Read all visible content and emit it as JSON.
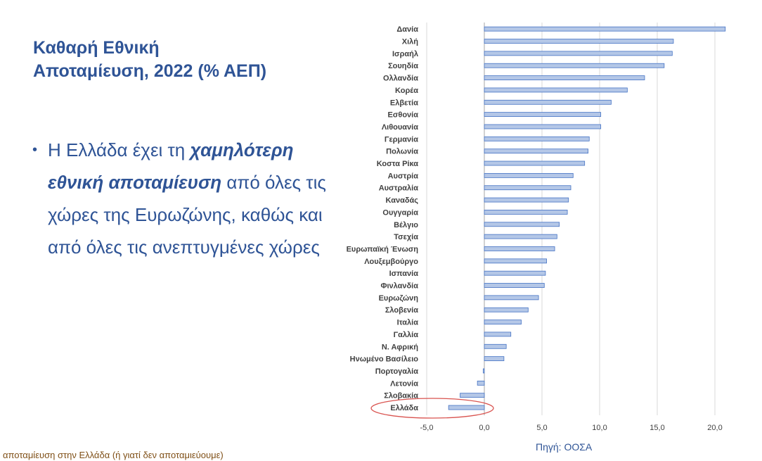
{
  "slide": {
    "title_line1": "Καθαρή Εθνική",
    "title_line2": "Αποταμίευση, 2022 (% ΑΕΠ)",
    "bullet": {
      "part1": "Η Ελλάδα έχει τη ",
      "emphasis": "χαμηλότερη εθνική αποταμίευση",
      "part2": " από όλες τις χώρες της Ευρωζώνης, καθώς και από όλες τις ανεπτυγμένες χώρες"
    },
    "source": "Πηγή: ΟΟΣΑ",
    "footer": "αποταμίευση στην Ελλάδα (ή γιατί δεν αποταμιεύουμε)"
  },
  "colors": {
    "title": "#2f5496",
    "bar_fill": "#b4c7e7",
    "bar_stroke": "#4472c4",
    "highlight": "#d9534f",
    "footer": "#7f4f16"
  },
  "chart_data": {
    "type": "bar",
    "orientation": "horizontal",
    "categories": [
      "Δανία",
      "Χιλή",
      "Ισραήλ",
      "Σουηδία",
      "Ολλανδία",
      "Κορέα",
      "Ελβετία",
      "Εσθονία",
      "Λιθουανία",
      "Γερμανία",
      "Πολωνία",
      "Κοστα Ρίκα",
      "Αυστρία",
      "Αυστραλία",
      "Καναδάς",
      "Ουγγαρία",
      "Βέλγιο",
      "Τσεχία",
      "Ευρωπαϊκή Ένωση",
      "Λουξεμβούργο",
      "Ισπανία",
      "Φινλανδία",
      "Ευρωζώνη",
      "Σλοβενία",
      "Ιταλία",
      "Γαλλία",
      "Ν. Αφρική",
      "Ηνωμένο Βασίλειο",
      "Πορτογαλία",
      "Λετονία",
      "Σλοβακία",
      "Ελλάδα"
    ],
    "values": [
      20.9,
      16.4,
      16.3,
      15.6,
      13.9,
      12.4,
      11.0,
      10.1,
      10.1,
      9.1,
      9.0,
      8.7,
      7.7,
      7.5,
      7.3,
      7.2,
      6.5,
      6.3,
      6.1,
      5.4,
      5.3,
      5.2,
      4.7,
      3.8,
      3.2,
      2.3,
      1.9,
      1.7,
      -0.1,
      -0.6,
      -2.1,
      -3.1
    ],
    "highlight": "Ελλάδα",
    "xlim": [
      -5,
      21
    ],
    "ticks": [
      "-5,0",
      "0,0",
      "5,0",
      "10,0",
      "15,0",
      "20,0"
    ],
    "tick_values": [
      -5,
      0,
      5,
      10,
      15,
      20
    ],
    "grid": true
  }
}
